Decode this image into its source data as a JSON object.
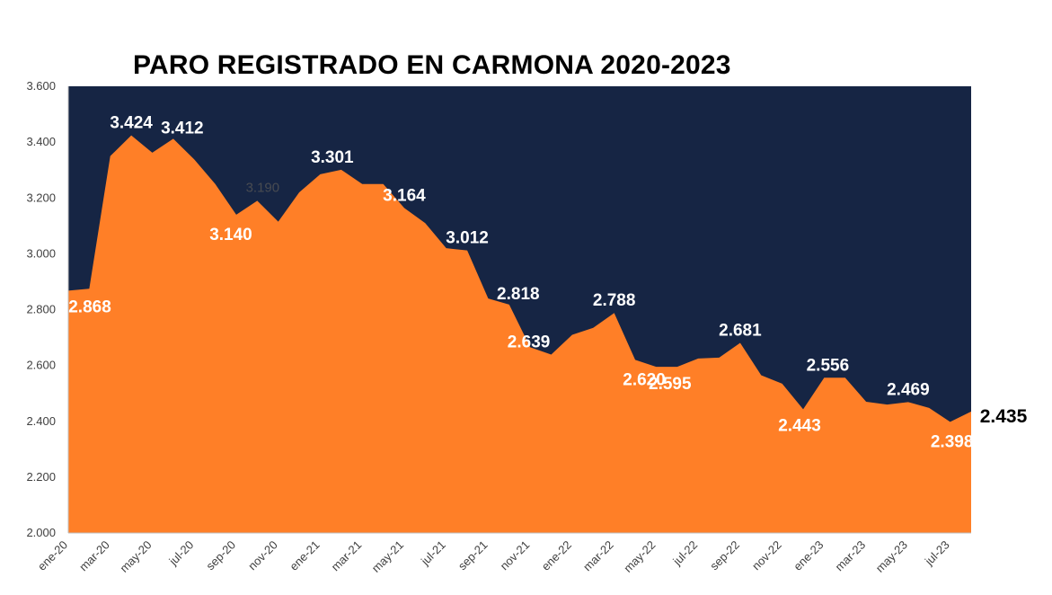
{
  "chart_data": {
    "type": "area",
    "title": "PARO REGISTRADO EN CARMONA 2020-2023",
    "xlabel": "",
    "ylabel": "",
    "ylim": [
      2000,
      3600
    ],
    "yticks": [
      2000,
      2200,
      2400,
      2600,
      2800,
      3000,
      3200,
      3400,
      3600
    ],
    "ytick_labels": [
      "2.000",
      "2.200",
      "2.400",
      "2.600",
      "2.800",
      "3.000",
      "3.200",
      "3.400",
      "3.600"
    ],
    "x": [
      "ene-20",
      "feb-20",
      "mar-20",
      "abr-20",
      "may-20",
      "jun-20",
      "jul-20",
      "ago-20",
      "sep-20",
      "oct-20",
      "nov-20",
      "dic-20",
      "ene-21",
      "feb-21",
      "mar-21",
      "abr-21",
      "may-21",
      "jun-21",
      "jul-21",
      "ago-21",
      "sep-21",
      "oct-21",
      "nov-21",
      "dic-21",
      "ene-22",
      "feb-22",
      "mar-22",
      "abr-22",
      "may-22",
      "jun-22",
      "jul-22",
      "ago-22",
      "sep-22",
      "oct-22",
      "nov-22",
      "dic-22",
      "ene-23",
      "feb-23",
      "mar-23",
      "abr-23",
      "may-23",
      "jun-23",
      "jul-23",
      "ago-23"
    ],
    "xtick_labels": [
      "ene-20",
      "mar-20",
      "may-20",
      "jul-20",
      "sep-20",
      "nov-20",
      "ene-21",
      "mar-21",
      "may-21",
      "jul-21",
      "sep-21",
      "nov-21",
      "ene-22",
      "mar-22",
      "may-22",
      "jul-22",
      "sep-22",
      "nov-22",
      "ene-23",
      "mar-23",
      "may-23",
      "jul-23"
    ],
    "xtick_indices": [
      0,
      2,
      4,
      6,
      8,
      10,
      12,
      14,
      16,
      18,
      20,
      22,
      24,
      26,
      28,
      30,
      32,
      34,
      36,
      38,
      40,
      42
    ],
    "values": [
      2868,
      2875,
      3350,
      3424,
      3362,
      3412,
      3338,
      3250,
      3140,
      3190,
      3115,
      3220,
      3285,
      3301,
      3250,
      3250,
      3164,
      3110,
      3020,
      3012,
      2840,
      2818,
      2665,
      2639,
      2710,
      2735,
      2788,
      2620,
      2595,
      2595,
      2625,
      2628,
      2681,
      2565,
      2535,
      2443,
      2556,
      2556,
      2470,
      2460,
      2469,
      2448,
      2398,
      2435
    ],
    "colors": {
      "fill": "#FF7F27",
      "background": "#162544"
    },
    "data_labels": [
      {
        "i": 0,
        "text": "2.868",
        "tone": "light"
      },
      {
        "i": 3,
        "text": "3.424",
        "tone": "light"
      },
      {
        "i": 5,
        "text": "3.412",
        "tone": "light"
      },
      {
        "i": 8,
        "text": "3.140",
        "tone": "light"
      },
      {
        "i": 9,
        "text": "3.190",
        "tone": "faint"
      },
      {
        "i": 13,
        "text": "3.301",
        "tone": "light"
      },
      {
        "i": 16,
        "text": "3.164",
        "tone": "light"
      },
      {
        "i": 19,
        "text": "3.012",
        "tone": "light"
      },
      {
        "i": 21,
        "text": "2.818",
        "tone": "light"
      },
      {
        "i": 23,
        "text": "2.639",
        "tone": "light"
      },
      {
        "i": 26,
        "text": "2.788",
        "tone": "light"
      },
      {
        "i": 27,
        "text": "2.620",
        "tone": "light"
      },
      {
        "i": 29,
        "text": "2.595",
        "tone": "light"
      },
      {
        "i": 32,
        "text": "2.681",
        "tone": "light"
      },
      {
        "i": 35,
        "text": "2.443",
        "tone": "light"
      },
      {
        "i": 36,
        "text": "2.556",
        "tone": "light"
      },
      {
        "i": 40,
        "text": "2.469",
        "tone": "light"
      },
      {
        "i": 42,
        "text": "2.398",
        "tone": "light"
      },
      {
        "i": 43,
        "text": "2.435",
        "tone": "dark"
      }
    ]
  }
}
